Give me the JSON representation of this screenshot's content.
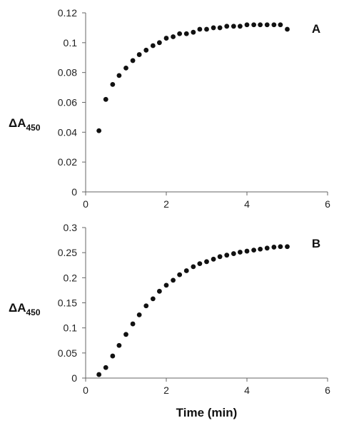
{
  "chart_data": [
    {
      "type": "scatter",
      "panel_label": "A",
      "ylabel_main": "ΔA",
      "ylabel_sub": "450",
      "xlabel": "",
      "xlim": [
        0,
        6
      ],
      "ylim": [
        0,
        0.12
      ],
      "xticks": [
        "0",
        "2",
        "4",
        "6"
      ],
      "yticks": [
        "0",
        "0.02",
        "0.04",
        "0.06",
        "0.08",
        "0.1",
        "0.12"
      ],
      "x": [
        0.33,
        0.5,
        0.67,
        0.83,
        1.0,
        1.17,
        1.33,
        1.5,
        1.67,
        1.83,
        2.0,
        2.17,
        2.33,
        2.5,
        2.67,
        2.83,
        3.0,
        3.17,
        3.33,
        3.5,
        3.67,
        3.83,
        4.0,
        4.17,
        4.33,
        4.5,
        4.67,
        4.83,
        5.0
      ],
      "y": [
        0.041,
        0.062,
        0.072,
        0.078,
        0.083,
        0.088,
        0.092,
        0.095,
        0.098,
        0.1,
        0.103,
        0.104,
        0.106,
        0.106,
        0.107,
        0.109,
        0.109,
        0.11,
        0.11,
        0.111,
        0.111,
        0.111,
        0.112,
        0.112,
        0.112,
        0.112,
        0.112,
        0.112,
        0.109
      ]
    },
    {
      "type": "scatter",
      "panel_label": "B",
      "ylabel_main": "ΔA",
      "ylabel_sub": "450",
      "xlabel": "Time (min)",
      "xlim": [
        0,
        6
      ],
      "ylim": [
        0,
        0.3
      ],
      "xticks": [
        "0",
        "2",
        "4",
        "6"
      ],
      "yticks": [
        "0",
        "0.05",
        "0.1",
        "0.15",
        "0.2",
        "0.25",
        "0.3"
      ],
      "x": [
        0.33,
        0.5,
        0.67,
        0.83,
        1.0,
        1.17,
        1.33,
        1.5,
        1.67,
        1.83,
        2.0,
        2.17,
        2.33,
        2.5,
        2.67,
        2.83,
        3.0,
        3.17,
        3.33,
        3.5,
        3.67,
        3.83,
        4.0,
        4.17,
        4.33,
        4.5,
        4.67,
        4.83,
        5.0
      ],
      "y": [
        0.007,
        0.021,
        0.044,
        0.065,
        0.087,
        0.108,
        0.126,
        0.144,
        0.158,
        0.173,
        0.185,
        0.195,
        0.206,
        0.214,
        0.222,
        0.228,
        0.232,
        0.237,
        0.242,
        0.245,
        0.248,
        0.251,
        0.253,
        0.255,
        0.257,
        0.259,
        0.261,
        0.262,
        0.262
      ]
    }
  ]
}
